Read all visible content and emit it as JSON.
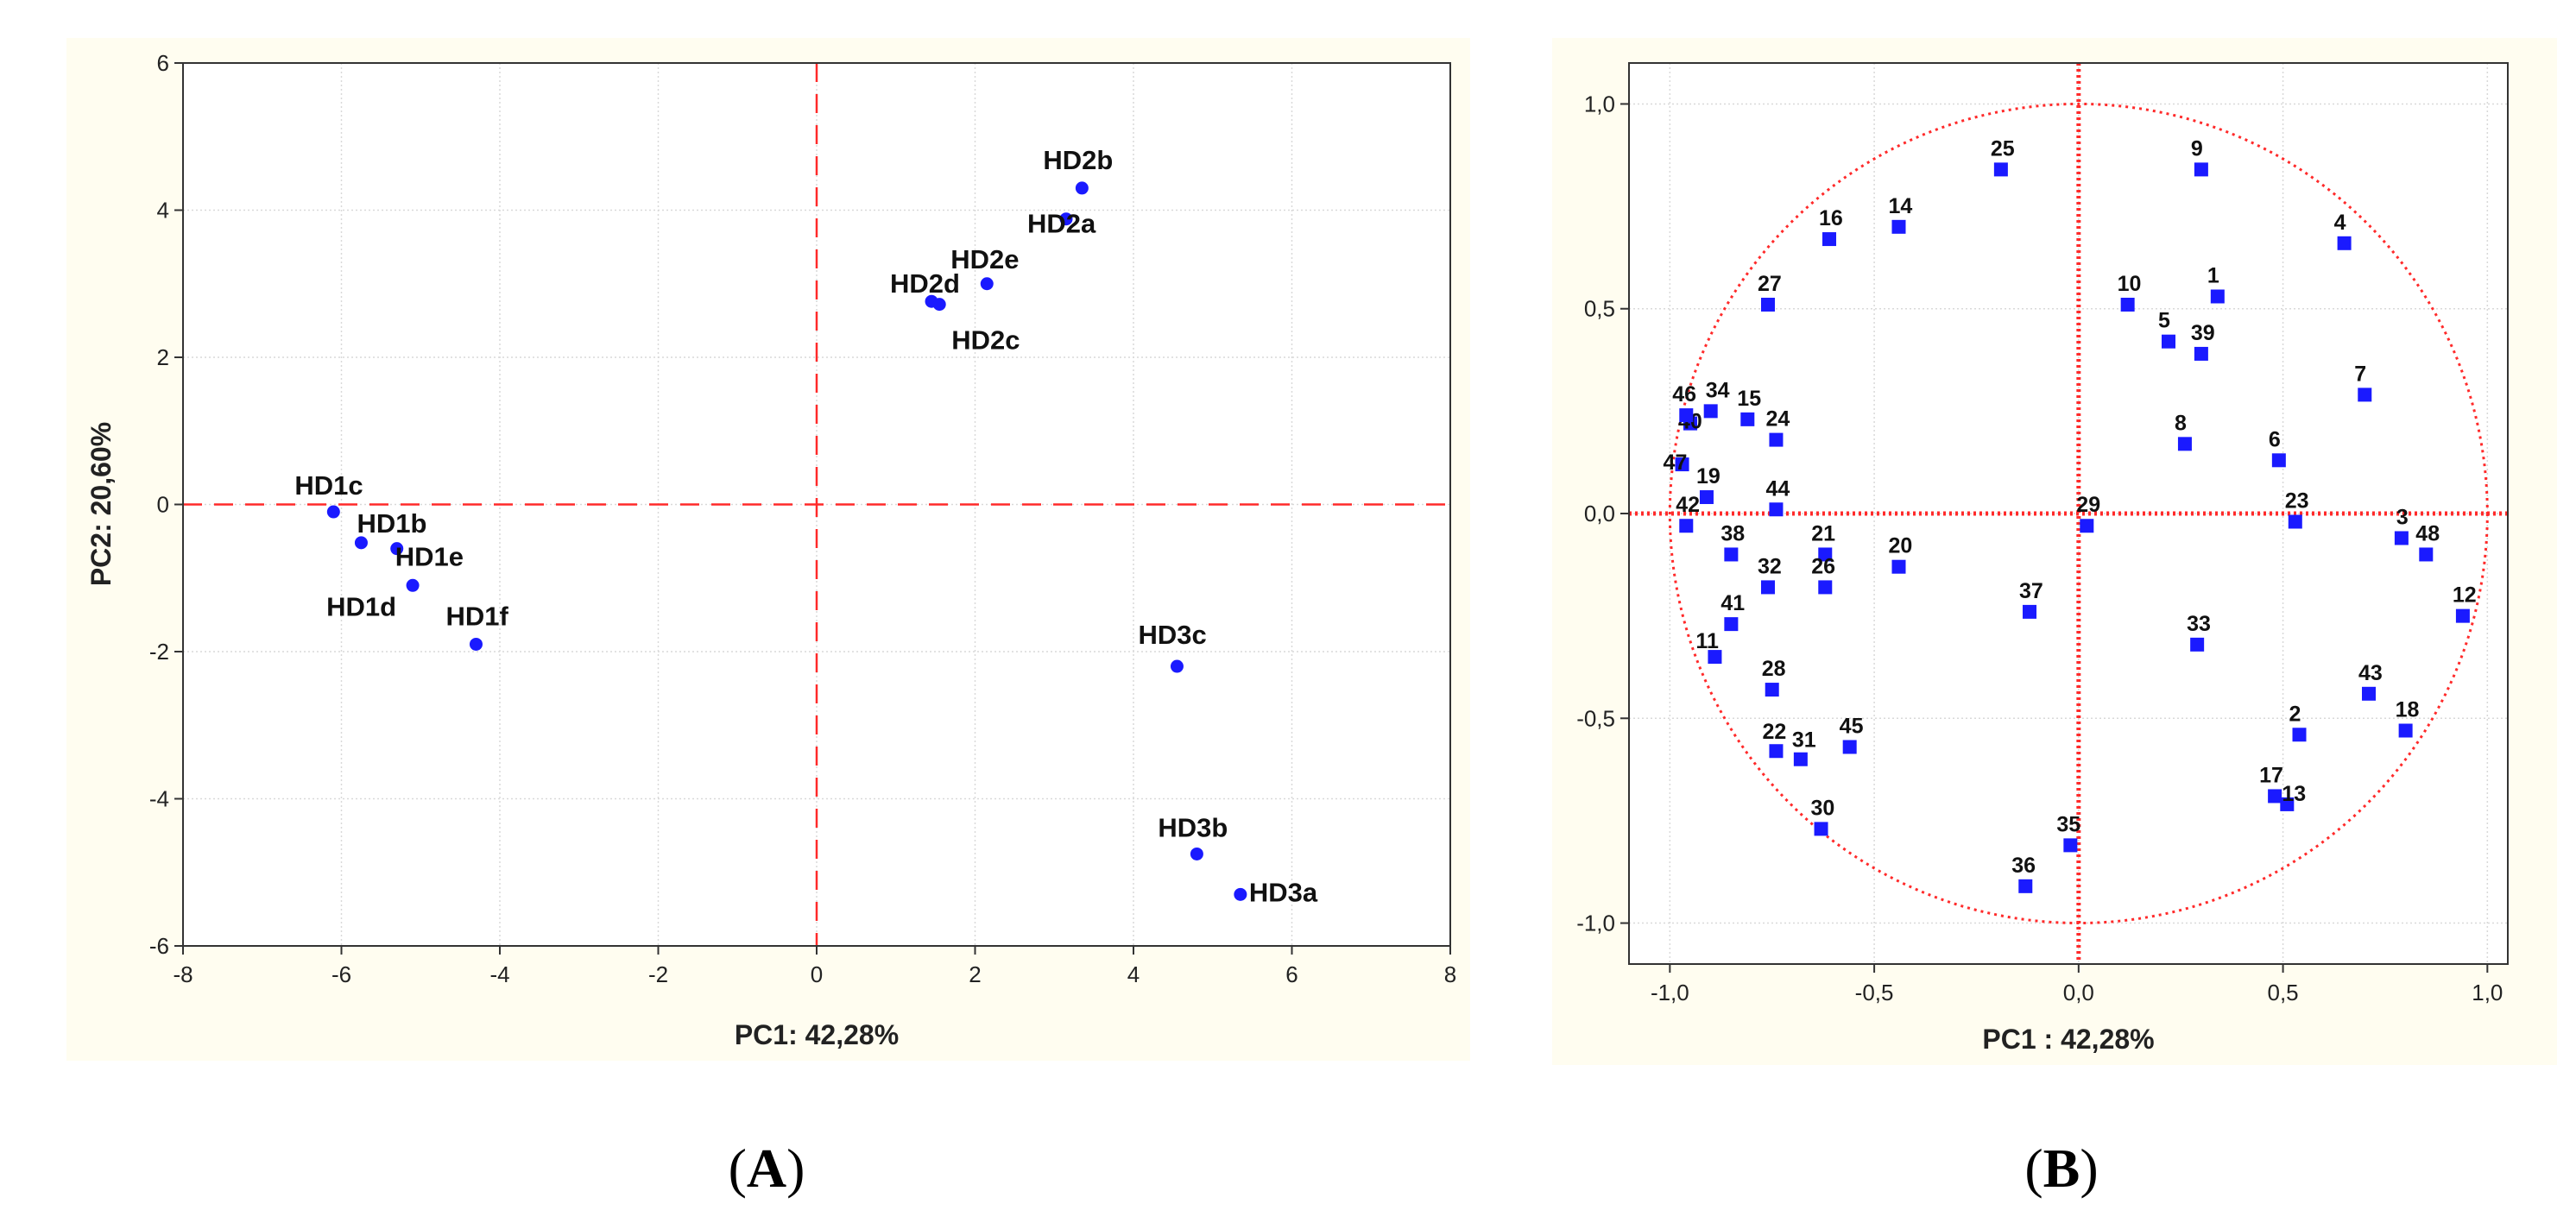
{
  "panel_labels": {
    "a_open": "(",
    "a": "A",
    "a_close": ")",
    "b_open": "(",
    "b": "B",
    "b_close": ")"
  },
  "chart_data": [
    {
      "type": "scatter",
      "title": "",
      "xlabel": "PC1: 42,28%",
      "ylabel": "PC2: 20,60%",
      "xlim": [
        -8,
        8
      ],
      "ylim": [
        -6,
        6
      ],
      "xticks": [
        -8,
        -6,
        -4,
        -2,
        0,
        2,
        4,
        6,
        8
      ],
      "yticks": [
        -6,
        -4,
        -2,
        0,
        2,
        4,
        6
      ],
      "xtick_labels": [
        "-8",
        "-6",
        "-4",
        "-2",
        "0",
        "2",
        "4",
        "6",
        "8"
      ],
      "ytick_labels": [
        "-6",
        "-4",
        "-2",
        "0",
        "2",
        "4",
        "6"
      ],
      "grid": true,
      "point_color": "#1a1aff",
      "reference_line_color": "#ff2a2a",
      "background_color": "#fffdf0",
      "points": [
        {
          "label": "HD1c",
          "x": -6.1,
          "y": -0.1
        },
        {
          "label": "HD1b",
          "x": -5.75,
          "y": -0.52
        },
        {
          "label": "HD1e",
          "x": -5.3,
          "y": -0.6
        },
        {
          "label": "HD1d",
          "x": -5.1,
          "y": -1.1
        },
        {
          "label": "HD1f",
          "x": -4.3,
          "y": -1.9
        },
        {
          "label": "HD2b",
          "x": 3.35,
          "y": 4.3
        },
        {
          "label": "HD2a",
          "x": 3.15,
          "y": 3.88
        },
        {
          "label": "HD2e",
          "x": 2.15,
          "y": 3.0
        },
        {
          "label": "HD2d",
          "x": 1.45,
          "y": 2.76
        },
        {
          "label": "HD2c",
          "x": 1.55,
          "y": 2.72
        },
        {
          "label": "HD3c",
          "x": 4.55,
          "y": -2.2
        },
        {
          "label": "HD3b",
          "x": 4.8,
          "y": -4.75
        },
        {
          "label": "HD3a",
          "x": 5.35,
          "y": -5.3
        }
      ]
    },
    {
      "type": "scatter",
      "title": "",
      "xlabel": "PC1 : 42,28%",
      "ylabel": "",
      "xlim": [
        -1.1,
        1.05
      ],
      "ylim": [
        -1.1,
        1.1
      ],
      "xticks": [
        -1.0,
        -0.5,
        0.0,
        0.5,
        1.0
      ],
      "yticks": [
        -1.0,
        -0.5,
        0.0,
        0.5,
        1.0
      ],
      "xtick_labels": [
        "-1,0",
        "-0,5",
        "0,0",
        "0,5",
        "1,0"
      ],
      "ytick_labels": [
        "-1,0",
        "-0,5",
        "0,0",
        "0,5",
        "1,0"
      ],
      "grid": true,
      "unit_circle": true,
      "point_color": "#1a1aff",
      "reference_line_color": "#ff2a2a",
      "background_color": "#fffdf0",
      "points": [
        {
          "label": "1",
          "x": 0.34,
          "y": 0.53
        },
        {
          "label": "2",
          "x": 0.54,
          "y": -0.54
        },
        {
          "label": "3",
          "x": 0.79,
          "y": -0.06
        },
        {
          "label": "4",
          "x": 0.65,
          "y": 0.66
        },
        {
          "label": "5",
          "x": 0.22,
          "y": 0.42
        },
        {
          "label": "6",
          "x": 0.49,
          "y": 0.13
        },
        {
          "label": "7",
          "x": 0.7,
          "y": 0.29
        },
        {
          "label": "8",
          "x": 0.26,
          "y": 0.17
        },
        {
          "label": "9",
          "x": 0.3,
          "y": 0.84
        },
        {
          "label": "10",
          "x": 0.12,
          "y": 0.51
        },
        {
          "label": "11",
          "x": -0.89,
          "y": -0.35
        },
        {
          "label": "12",
          "x": 0.94,
          "y": -0.25
        },
        {
          "label": "13",
          "x": 0.51,
          "y": -0.71
        },
        {
          "label": "14",
          "x": -0.44,
          "y": 0.7
        },
        {
          "label": "15",
          "x": -0.81,
          "y": 0.23
        },
        {
          "label": "16",
          "x": -0.61,
          "y": 0.67
        },
        {
          "label": "17",
          "x": 0.48,
          "y": -0.69
        },
        {
          "label": "18",
          "x": 0.8,
          "y": -0.53
        },
        {
          "label": "19",
          "x": -0.91,
          "y": 0.04
        },
        {
          "label": "20",
          "x": -0.44,
          "y": -0.13
        },
        {
          "label": "21",
          "x": -0.62,
          "y": -0.1
        },
        {
          "label": "22",
          "x": -0.74,
          "y": -0.58
        },
        {
          "label": "23",
          "x": 0.53,
          "y": -0.02
        },
        {
          "label": "24",
          "x": -0.74,
          "y": 0.18
        },
        {
          "label": "25",
          "x": -0.19,
          "y": 0.84
        },
        {
          "label": "26",
          "x": -0.62,
          "y": -0.18
        },
        {
          "label": "27",
          "x": -0.76,
          "y": 0.51
        },
        {
          "label": "28",
          "x": -0.75,
          "y": -0.43
        },
        {
          "label": "29",
          "x": 0.02,
          "y": -0.03
        },
        {
          "label": "30",
          "x": -0.63,
          "y": -0.77
        },
        {
          "label": "31",
          "x": -0.68,
          "y": -0.6
        },
        {
          "label": "32",
          "x": -0.76,
          "y": -0.18
        },
        {
          "label": "33",
          "x": 0.29,
          "y": -0.32
        },
        {
          "label": "34",
          "x": -0.9,
          "y": 0.25
        },
        {
          "label": "35",
          "x": -0.02,
          "y": -0.81
        },
        {
          "label": "36",
          "x": -0.13,
          "y": -0.91
        },
        {
          "label": "37",
          "x": -0.12,
          "y": -0.24
        },
        {
          "label": "38",
          "x": -0.85,
          "y": -0.1
        },
        {
          "label": "39",
          "x": 0.3,
          "y": 0.39
        },
        {
          "label": "40",
          "x": -0.95,
          "y": 0.22
        },
        {
          "label": "41",
          "x": -0.85,
          "y": -0.27
        },
        {
          "label": "42",
          "x": -0.96,
          "y": -0.03
        },
        {
          "label": "43",
          "x": 0.71,
          "y": -0.44
        },
        {
          "label": "44",
          "x": -0.74,
          "y": 0.01
        },
        {
          "label": "45",
          "x": -0.56,
          "y": -0.57
        },
        {
          "label": "46",
          "x": -0.96,
          "y": 0.24
        },
        {
          "label": "47",
          "x": -0.97,
          "y": 0.12
        },
        {
          "label": "48",
          "x": 0.85,
          "y": -0.1
        }
      ]
    }
  ]
}
